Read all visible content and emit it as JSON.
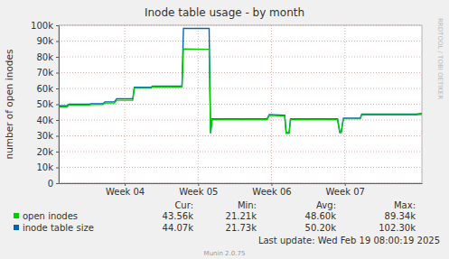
{
  "chart_data": {
    "type": "line",
    "title": "Inode table usage - by month",
    "y_label": "number of open inodes",
    "watermark": "RRDTOOL / TOBI OETIKER",
    "last_update": "Last update: Wed Feb 19 08:00:19 2025",
    "generator": "Munin 2.0.75",
    "grid": true,
    "xlim": [
      3.1,
      8.05
    ],
    "xticks": [
      {
        "value": 4,
        "label": "Week 04"
      },
      {
        "value": 5,
        "label": "Week 05"
      },
      {
        "value": 6,
        "label": "Week 06"
      },
      {
        "value": 7,
        "label": "Week 07"
      }
    ],
    "ylim": [
      0,
      100000
    ],
    "yticks": [
      0,
      {
        "value": 10000,
        "label": "10k"
      },
      {
        "value": 20000,
        "label": "20k"
      },
      {
        "value": 30000,
        "label": "30k"
      },
      {
        "value": 40000,
        "label": "40k"
      },
      {
        "value": 50000,
        "label": "50k"
      },
      {
        "value": 60000,
        "label": "60k"
      },
      {
        "value": 70000,
        "label": "70k"
      },
      {
        "value": 80000,
        "label": "80k"
      },
      {
        "value": 90000,
        "label": "90k"
      },
      {
        "value": 100000,
        "label": "100k"
      }
    ],
    "stat_names": [
      "Cur:",
      "Min:",
      "Avg:",
      "Max:"
    ],
    "x": [
      3.1,
      3.21,
      3.24,
      3.52,
      3.54,
      3.7,
      3.73,
      3.86,
      3.89,
      4.11,
      4.13,
      4.36,
      4.38,
      4.78,
      4.8,
      5.15,
      5.17,
      5.19,
      5.94,
      5.97,
      6.18,
      6.2,
      6.24,
      6.26,
      6.9,
      6.93,
      6.95,
      6.98,
      7.21,
      7.23,
      7.97,
      8.05
    ],
    "series": [
      {
        "name": "open inodes",
        "color": "#00cc00",
        "values": [
          48300,
          48300,
          49500,
          49500,
          49800,
          49800,
          50800,
          50800,
          52500,
          52500,
          60300,
          60300,
          61000,
          61000,
          85000,
          84800,
          31500,
          40300,
          40300,
          43000,
          42500,
          31500,
          31500,
          40300,
          40300,
          32000,
          32000,
          40800,
          40800,
          43300,
          43300,
          43600
        ],
        "stats": [
          {
            "value": 43560,
            "label": "43.56k"
          },
          {
            "value": 21210,
            "label": "21.21k"
          },
          {
            "value": 48600,
            "label": "48.60k"
          },
          {
            "value": 89340,
            "label": "89.34k"
          }
        ]
      },
      {
        "name": "inode table size",
        "color": "#0066b3",
        "values": [
          49000,
          49000,
          50000,
          50000,
          50300,
          50300,
          51500,
          51500,
          53500,
          53500,
          60800,
          60800,
          61500,
          61500,
          98000,
          98000,
          32000,
          40800,
          40800,
          43500,
          43000,
          32000,
          32000,
          40800,
          40800,
          32500,
          32500,
          41200,
          41200,
          43700,
          43700,
          44200
        ],
        "stats": [
          {
            "value": 44070,
            "label": "44.07k"
          },
          {
            "value": 21730,
            "label": "21.73k"
          },
          {
            "value": 50200,
            "label": "50.20k"
          },
          {
            "value": 102300,
            "label": "102.30k"
          }
        ]
      }
    ]
  }
}
